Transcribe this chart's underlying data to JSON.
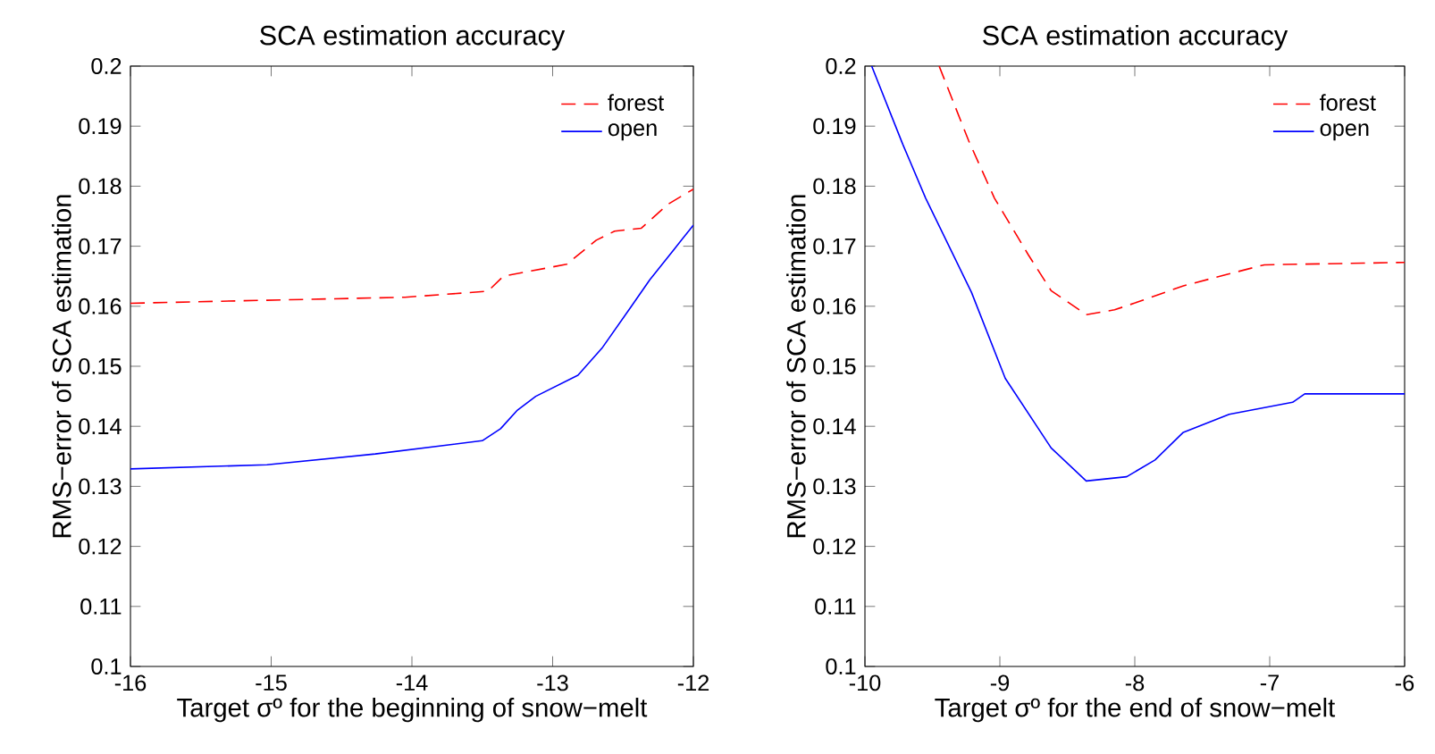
{
  "chart_data": [
    {
      "type": "line",
      "title": "SCA estimation accuracy",
      "xlabel": "Target σº for the beginning of snow−melt",
      "ylabel": "RMS−error of SCA estimation",
      "xlim": [
        -16,
        -12
      ],
      "ylim": [
        0.1,
        0.2
      ],
      "xticks": [
        -16,
        -15,
        -14,
        -13,
        -12
      ],
      "yticks": [
        0.1,
        0.11,
        0.12,
        0.13,
        0.14,
        0.15,
        0.16,
        0.17,
        0.18,
        0.19,
        0.2
      ],
      "legend": "top right",
      "marker": "none",
      "series": [
        {
          "name": "forest",
          "color": "#ff0000",
          "line_style": "dashed",
          "x": [
            -16,
            -15.03,
            -14.05,
            -13.46,
            -13.35,
            -12.9,
            -12.69,
            -12.56,
            -12.37,
            -12.18,
            -12
          ],
          "values": [
            0.1605,
            0.161,
            0.1615,
            0.1625,
            0.165,
            0.167,
            0.171,
            0.1725,
            0.173,
            0.177,
            0.1795
          ]
        },
        {
          "name": "open",
          "color": "#0000ff",
          "line_style": "solid",
          "x": [
            -16,
            -15.03,
            -14.26,
            -13.5,
            -13.37,
            -13.25,
            -13.12,
            -12.82,
            -12.65,
            -12.44,
            -12.31,
            -12.14,
            -12
          ],
          "values": [
            0.1329,
            0.1336,
            0.1354,
            0.1376,
            0.1396,
            0.1427,
            0.145,
            0.1485,
            0.153,
            0.16,
            0.1644,
            0.1694,
            0.1735
          ]
        }
      ]
    },
    {
      "type": "line",
      "title": "SCA estimation accuracy",
      "xlabel": "Target σº for the end of snow−melt",
      "ylabel": "RMS−error of SCA estimation",
      "xlim": [
        -10,
        -6
      ],
      "ylim": [
        0.1,
        0.2
      ],
      "xticks": [
        -10,
        -9,
        -8,
        -7,
        -6
      ],
      "yticks": [
        0.1,
        0.11,
        0.12,
        0.13,
        0.14,
        0.15,
        0.16,
        0.17,
        0.18,
        0.19,
        0.2
      ],
      "legend": "top right",
      "marker": "none",
      "series": [
        {
          "name": "forest",
          "color": "#ff0000",
          "line_style": "dashed",
          "x": [
            -9.45,
            -9.23,
            -9.04,
            -8.79,
            -8.62,
            -8.36,
            -8.15,
            -7.94,
            -7.64,
            -7.3,
            -7.04,
            -6
          ],
          "values": [
            0.2,
            0.1875,
            0.178,
            0.1686,
            0.1626,
            0.1586,
            0.1594,
            0.161,
            0.1634,
            0.1654,
            0.1669,
            0.1673
          ]
        },
        {
          "name": "open",
          "color": "#0000ff",
          "line_style": "solid",
          "x": [
            -9.95,
            -9.72,
            -9.55,
            -9.21,
            -8.96,
            -8.62,
            -8.36,
            -8.06,
            -7.85,
            -7.64,
            -7.3,
            -6.83,
            -6.74,
            -6
          ],
          "values": [
            0.2,
            0.187,
            0.178,
            0.1623,
            0.148,
            0.1364,
            0.1309,
            0.1316,
            0.1344,
            0.139,
            0.142,
            0.144,
            0.1454,
            0.1454
          ]
        }
      ]
    }
  ]
}
